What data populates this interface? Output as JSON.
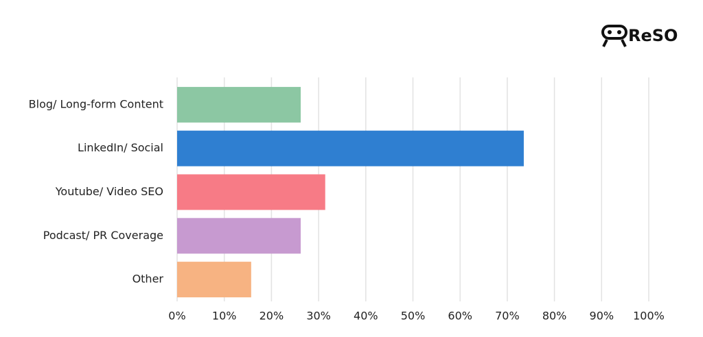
{
  "chart_data": {
    "type": "bar",
    "orientation": "horizontal",
    "brand": "ReSO",
    "categories": [
      "Blog/ Long-form Content",
      "LinkedIn/ Social",
      "Youtube/ Video SEO",
      "Podcast/ PR Coverage",
      "Other"
    ],
    "values": [
      26.2,
      73.5,
      31.4,
      26.2,
      15.7
    ],
    "colors": [
      "#8cc7a3",
      "#2f7fd1",
      "#f77b86",
      "#c79ad0",
      "#f7b382"
    ],
    "xlim": [
      0,
      100
    ],
    "xticks": [
      {
        "value": 0,
        "label": "0%"
      },
      {
        "value": 10,
        "label": "10%"
      },
      {
        "value": 20,
        "label": "20%"
      },
      {
        "value": 30,
        "label": "30%"
      },
      {
        "value": 40,
        "label": "40%"
      },
      {
        "value": 50,
        "label": "50%"
      },
      {
        "value": 60,
        "label": "60%"
      },
      {
        "value": 70,
        "label": "70%"
      },
      {
        "value": 80,
        "label": "80%"
      },
      {
        "value": 90,
        "label": "90%"
      },
      {
        "value": 100,
        "label": "100%"
      }
    ],
    "grid": true
  }
}
